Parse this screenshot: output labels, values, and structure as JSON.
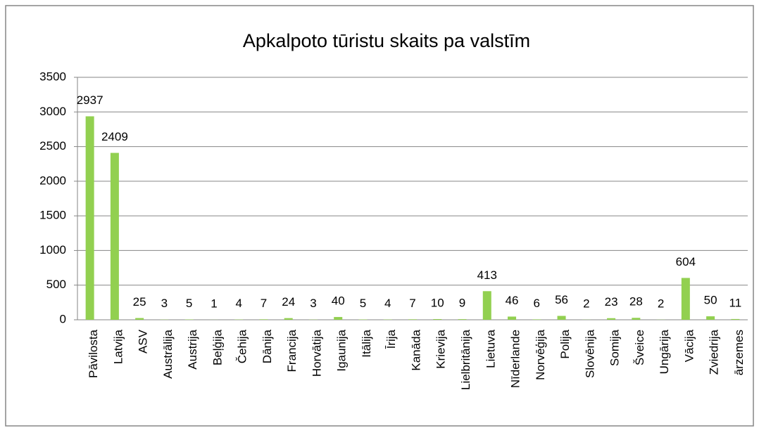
{
  "chart_data": {
    "type": "bar",
    "title": "Apkalpoto tūristu skaits pa valstīm",
    "categories": [
      "Pāvilosta",
      "Latvija",
      "ASV",
      "Austrālija",
      "Austrija",
      "Beļģija",
      "Čehija",
      "Dānija",
      "Francija",
      "Horvātija",
      "Igaunija",
      "Itālija",
      "Īrija",
      "Kanāda",
      "Krievija",
      "Lielbritānija",
      "Lietuva",
      "Nīderlande",
      "Norvēģija",
      "Polija",
      "Slovēnija",
      "Somija",
      "Šveice",
      "Ungārija",
      "Vācija",
      "Zviedrija",
      "ārzemes"
    ],
    "values": [
      2937,
      2409,
      25,
      3,
      5,
      1,
      4,
      7,
      24,
      3,
      40,
      5,
      4,
      7,
      10,
      9,
      413,
      46,
      6,
      56,
      2,
      23,
      28,
      2,
      604,
      50,
      11
    ],
    "color": "#92d050",
    "ylim": [
      0,
      3500
    ],
    "yticks": [
      0,
      500,
      1000,
      1500,
      2000,
      2500,
      3000,
      3500
    ],
    "grid": true
  }
}
